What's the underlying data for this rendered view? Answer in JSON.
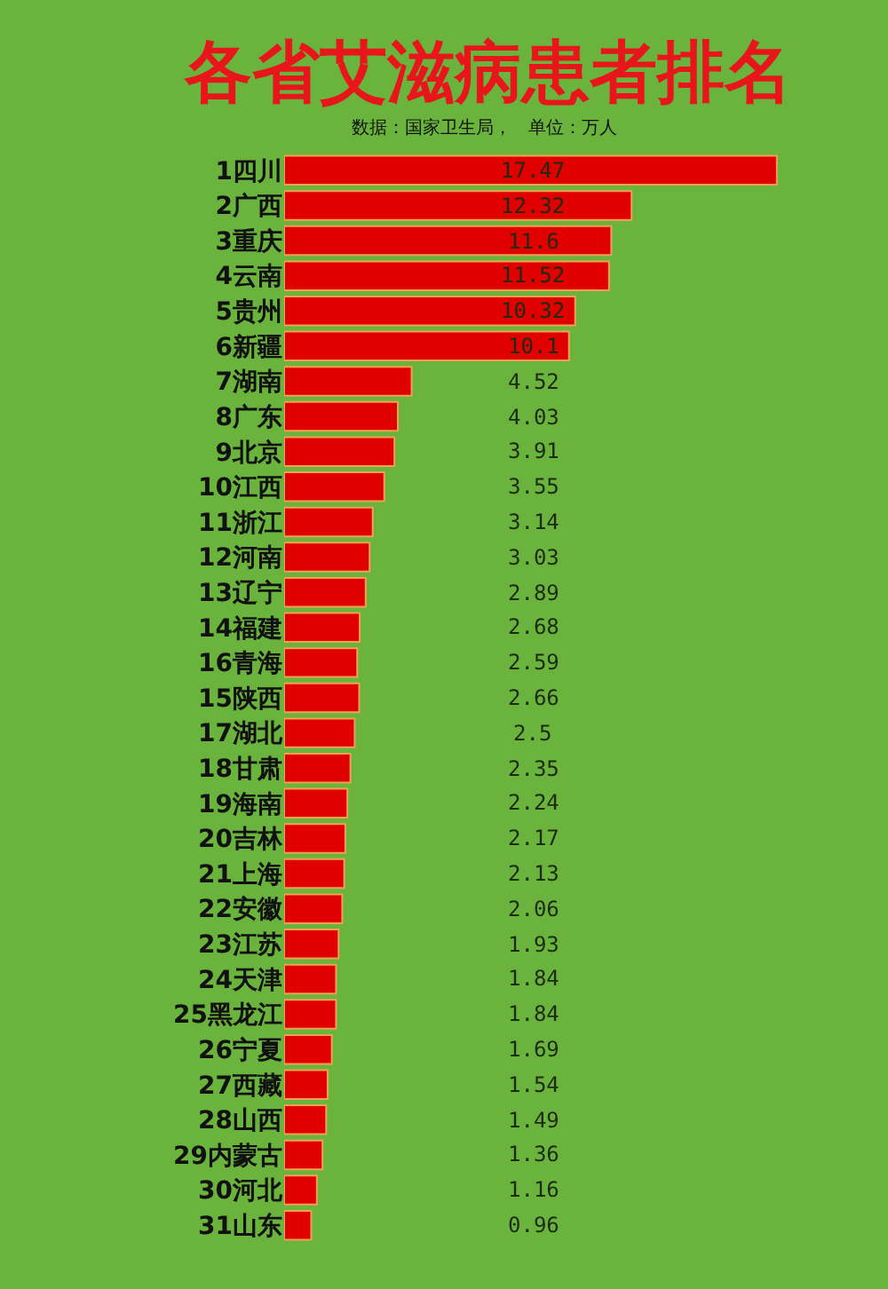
{
  "chart_data": {
    "type": "bar",
    "orientation": "horizontal",
    "title": "各省艾滋病患者排名",
    "subtitle": "数据：国家卫生局，   单位：万人",
    "categories": [
      "1四川",
      "2广西",
      "3重庆",
      "4云南",
      "5贵州",
      "6新疆",
      "7湖南",
      "8广东",
      "9北京",
      "10江西",
      "11浙江",
      "12河南",
      "13辽宁",
      "14福建",
      "16青海",
      "15陕西",
      "17湖北",
      "18甘肃",
      "19海南",
      "20吉林",
      "21上海",
      "22安徽",
      "23江苏",
      "24天津",
      "25黑龙江",
      "26宁夏",
      "27西藏",
      "28山西",
      "29内蒙古",
      "30河北",
      "31山东"
    ],
    "values": [
      17.47,
      12.32,
      11.6,
      11.52,
      10.32,
      10.1,
      4.52,
      4.03,
      3.91,
      3.55,
      3.14,
      3.03,
      2.89,
      2.68,
      2.59,
      2.66,
      2.5,
      2.35,
      2.24,
      2.17,
      2.13,
      2.06,
      1.93,
      1.84,
      1.84,
      1.69,
      1.54,
      1.49,
      1.36,
      1.16,
      0.96
    ],
    "color": "#e00000",
    "data_labels": true,
    "tick_labels": "y",
    "grid": false,
    "legend": false
  }
}
